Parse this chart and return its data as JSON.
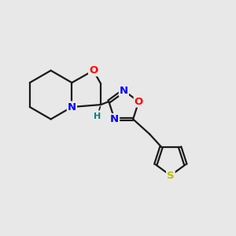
{
  "background_color": "#e8e8e8",
  "bond_color": "#1a1a1a",
  "bond_width": 1.6,
  "atom_colors": {
    "O": "#ff0000",
    "N": "#0000ff",
    "S": "#bbbb00",
    "H": "#008080",
    "C": "#1a1a1a"
  },
  "font_size_atom": 9.5,
  "font_size_H": 8.0
}
